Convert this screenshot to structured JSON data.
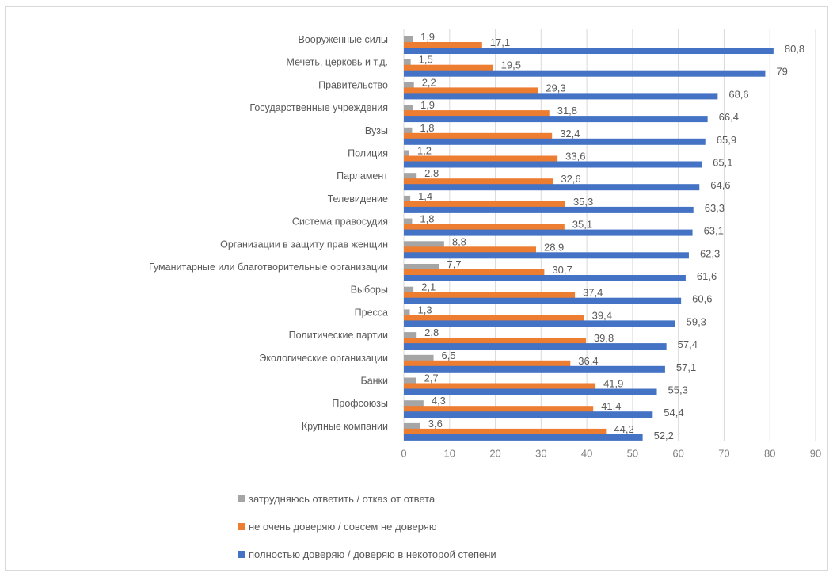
{
  "chart_data": {
    "type": "bar",
    "orientation": "horizontal",
    "categories": [
      "Вооруженные силы",
      "Мечеть, церковь и т.д.",
      "Правительство",
      "Государственные учреждения",
      "Вузы",
      "Полиция",
      "Парламент",
      "Телевидение",
      "Система правосудия",
      "Организации в защиту прав женщин",
      "Гуманитарные или благотворительные организации",
      "Выборы",
      "Пресса",
      "Политические партии",
      "Экологические организации",
      "Банки",
      "Профсоюзы",
      "Крупные компании"
    ],
    "series": [
      {
        "name": "затрудняюсь ответить / отказ от ответа",
        "color": "#a5a5a5",
        "values": [
          1.9,
          1.5,
          2.2,
          1.9,
          1.8,
          1.2,
          2.8,
          1.4,
          1.8,
          8.8,
          7.7,
          2.1,
          1.3,
          2.8,
          6.5,
          2.7,
          4.3,
          3.6
        ]
      },
      {
        "name": "не очень доверяю / совсем не доверяю",
        "color": "#ed7d31",
        "values": [
          17.1,
          19.5,
          29.3,
          31.8,
          32.4,
          33.6,
          32.6,
          35.3,
          35.1,
          28.9,
          30.7,
          37.4,
          39.4,
          39.8,
          36.4,
          41.9,
          41.4,
          44.2
        ]
      },
      {
        "name": "полностью доверяю / доверяю в некоторой степени",
        "color": "#4472c4",
        "values": [
          80.8,
          79,
          68.6,
          66.4,
          65.9,
          65.1,
          64.6,
          63.3,
          63.1,
          62.3,
          61.6,
          60.6,
          59.3,
          57.4,
          57.1,
          55.3,
          54.4,
          52.2
        ]
      }
    ],
    "value_labels": [
      [
        "1,9",
        "1,5",
        "2,2",
        "1,9",
        "1,8",
        "1,2",
        "2,8",
        "1,4",
        "1,8",
        "8,8",
        "7,7",
        "2,1",
        "1,3",
        "2,8",
        "6,5",
        "2,7",
        "4,3",
        "3,6"
      ],
      [
        "17,1",
        "19,5",
        "29,3",
        "31,8",
        "32,4",
        "33,6",
        "32,6",
        "35,3",
        "35,1",
        "28,9",
        "30,7",
        "37,4",
        "39,4",
        "39,8",
        "36,4",
        "41,9",
        "41,4",
        "44,2"
      ],
      [
        "80,8",
        "79",
        "68,6",
        "66,4",
        "65,9",
        "65,1",
        "64,6",
        "63,3",
        "63,1",
        "62,3",
        "61,6",
        "60,6",
        "59,3",
        "57,4",
        "57,1",
        "55,3",
        "54,4",
        "52,2"
      ]
    ],
    "xlim": [
      0,
      90
    ],
    "xticks": [
      "0",
      "10",
      "20",
      "30",
      "40",
      "50",
      "60",
      "70",
      "80",
      "90"
    ],
    "grid": true,
    "legend_position": "bottom",
    "title": "",
    "xlabel": "",
    "ylabel": ""
  }
}
